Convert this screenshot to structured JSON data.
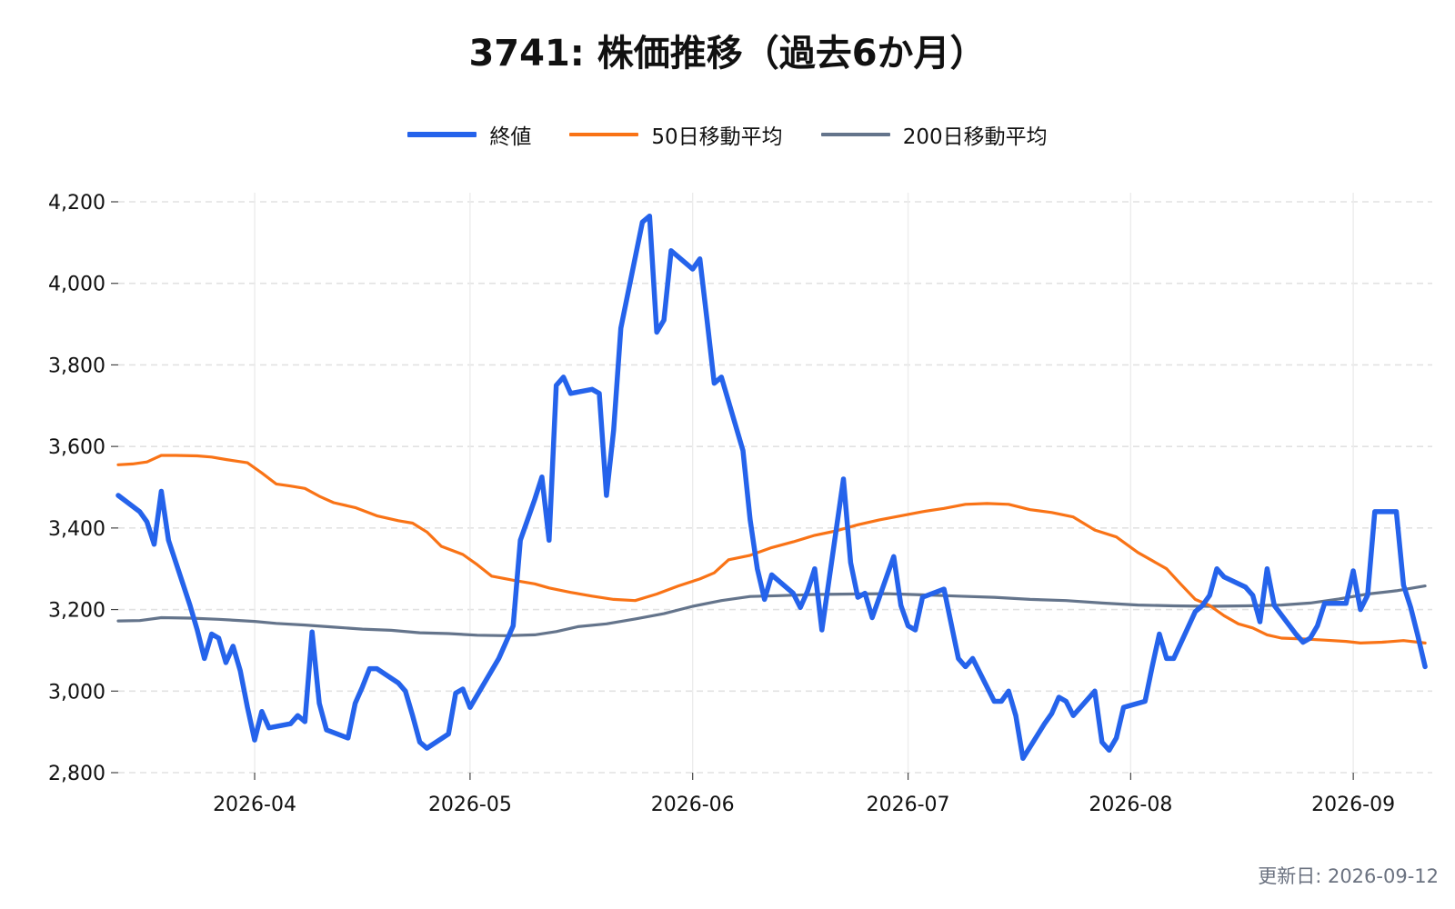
{
  "chart_data": {
    "type": "line",
    "title": "3741: 株価推移（過去6か月）",
    "xlabel": "",
    "ylabel": "",
    "ylim": [
      2800,
      4200
    ],
    "xlim": [
      "2026-03-13",
      "2026-09-12"
    ],
    "yticks": [
      2800,
      3000,
      3200,
      3400,
      3600,
      3800,
      4000,
      4200
    ],
    "ytick_labels": [
      "2,800",
      "3,000",
      "3,200",
      "3,400",
      "3,600",
      "3,800",
      "4,000",
      "4,200"
    ],
    "xticks": [
      "2026-04-01",
      "2026-05-01",
      "2026-06-01",
      "2026-07-01",
      "2026-08-01",
      "2026-09-01"
    ],
    "xtick_labels": [
      "2026-04",
      "2026-05",
      "2026-06",
      "2026-07",
      "2026-08",
      "2026-09"
    ],
    "grid": true,
    "legend_position": "top-center",
    "series": [
      {
        "name": "終値",
        "color": "#2563eb",
        "points": [
          [
            "2026-03-13",
            3480
          ],
          [
            "2026-03-16",
            3440
          ],
          [
            "2026-03-17",
            3415
          ],
          [
            "2026-03-18",
            3360
          ],
          [
            "2026-03-19",
            3490
          ],
          [
            "2026-03-20",
            3370
          ],
          [
            "2026-03-23",
            3210
          ],
          [
            "2026-03-24",
            3150
          ],
          [
            "2026-03-25",
            3080
          ],
          [
            "2026-03-26",
            3140
          ],
          [
            "2026-03-27",
            3130
          ],
          [
            "2026-03-28",
            3070
          ],
          [
            "2026-03-29",
            3110
          ],
          [
            "2026-03-30",
            3050
          ],
          [
            "2026-03-31",
            2960
          ],
          [
            "2026-04-01",
            2880
          ],
          [
            "2026-04-02",
            2950
          ],
          [
            "2026-04-03",
            2910
          ],
          [
            "2026-04-06",
            2920
          ],
          [
            "2026-04-07",
            2940
          ],
          [
            "2026-04-08",
            2925
          ],
          [
            "2026-04-09",
            3145
          ],
          [
            "2026-04-10",
            2970
          ],
          [
            "2026-04-11",
            2905
          ],
          [
            "2026-04-14",
            2885
          ],
          [
            "2026-04-15",
            2970
          ],
          [
            "2026-04-16",
            3010
          ],
          [
            "2026-04-17",
            3055
          ],
          [
            "2026-04-18",
            3055
          ],
          [
            "2026-04-21",
            3020
          ],
          [
            "2026-04-22",
            3000
          ],
          [
            "2026-04-23",
            2940
          ],
          [
            "2026-04-24",
            2875
          ],
          [
            "2026-04-25",
            2860
          ],
          [
            "2026-04-28",
            2895
          ],
          [
            "2026-04-29",
            2995
          ],
          [
            "2026-04-30",
            3005
          ],
          [
            "2026-05-01",
            2960
          ],
          [
            "2026-05-05",
            3080
          ],
          [
            "2026-05-06",
            3120
          ],
          [
            "2026-05-07",
            3160
          ],
          [
            "2026-05-08",
            3370
          ],
          [
            "2026-05-09",
            3420
          ],
          [
            "2026-05-10",
            3470
          ],
          [
            "2026-05-11",
            3525
          ],
          [
            "2026-05-12",
            3370
          ],
          [
            "2026-05-13",
            3750
          ],
          [
            "2026-05-14",
            3770
          ],
          [
            "2026-05-15",
            3730
          ],
          [
            "2026-05-18",
            3740
          ],
          [
            "2026-05-19",
            3730
          ],
          [
            "2026-05-20",
            3480
          ],
          [
            "2026-05-21",
            3640
          ],
          [
            "2026-05-22",
            3890
          ],
          [
            "2026-05-25",
            4150
          ],
          [
            "2026-05-26",
            4165
          ],
          [
            "2026-05-27",
            3880
          ],
          [
            "2026-05-28",
            3910
          ],
          [
            "2026-05-29",
            4080
          ],
          [
            "2026-06-01",
            4035
          ],
          [
            "2026-06-02",
            4060
          ],
          [
            "2026-06-03",
            3910
          ],
          [
            "2026-06-04",
            3755
          ],
          [
            "2026-06-05",
            3770
          ],
          [
            "2026-06-08",
            3590
          ],
          [
            "2026-06-09",
            3420
          ],
          [
            "2026-06-10",
            3300
          ],
          [
            "2026-06-11",
            3225
          ],
          [
            "2026-06-12",
            3285
          ],
          [
            "2026-06-15",
            3240
          ],
          [
            "2026-06-16",
            3205
          ],
          [
            "2026-06-17",
            3245
          ],
          [
            "2026-06-18",
            3300
          ],
          [
            "2026-06-19",
            3150
          ],
          [
            "2026-06-22",
            3520
          ],
          [
            "2026-06-23",
            3315
          ],
          [
            "2026-06-24",
            3230
          ],
          [
            "2026-06-25",
            3240
          ],
          [
            "2026-06-26",
            3180
          ],
          [
            "2026-06-29",
            3330
          ],
          [
            "2026-06-30",
            3210
          ],
          [
            "2026-07-01",
            3160
          ],
          [
            "2026-07-02",
            3150
          ],
          [
            "2026-07-03",
            3230
          ],
          [
            "2026-07-06",
            3250
          ],
          [
            "2026-07-07",
            3165
          ],
          [
            "2026-07-08",
            3080
          ],
          [
            "2026-07-09",
            3060
          ],
          [
            "2026-07-10",
            3080
          ],
          [
            "2026-07-13",
            2975
          ],
          [
            "2026-07-14",
            2975
          ],
          [
            "2026-07-15",
            3000
          ],
          [
            "2026-07-16",
            2940
          ],
          [
            "2026-07-17",
            2835
          ],
          [
            "2026-07-20",
            2920
          ],
          [
            "2026-07-21",
            2945
          ],
          [
            "2026-07-22",
            2985
          ],
          [
            "2026-07-23",
            2975
          ],
          [
            "2026-07-24",
            2940
          ],
          [
            "2026-07-27",
            3000
          ],
          [
            "2026-07-28",
            2875
          ],
          [
            "2026-07-29",
            2855
          ],
          [
            "2026-07-30",
            2885
          ],
          [
            "2026-07-31",
            2960
          ],
          [
            "2026-08-03",
            2975
          ],
          [
            "2026-08-04",
            3060
          ],
          [
            "2026-08-05",
            3140
          ],
          [
            "2026-08-06",
            3080
          ],
          [
            "2026-08-07",
            3080
          ],
          [
            "2026-08-10",
            3195
          ],
          [
            "2026-08-11",
            3210
          ],
          [
            "2026-08-12",
            3235
          ],
          [
            "2026-08-13",
            3300
          ],
          [
            "2026-08-14",
            3280
          ],
          [
            "2026-08-17",
            3255
          ],
          [
            "2026-08-18",
            3235
          ],
          [
            "2026-08-19",
            3170
          ],
          [
            "2026-08-20",
            3300
          ],
          [
            "2026-08-21",
            3210
          ],
          [
            "2026-08-24",
            3140
          ],
          [
            "2026-08-25",
            3120
          ],
          [
            "2026-08-26",
            3130
          ],
          [
            "2026-08-27",
            3160
          ],
          [
            "2026-08-28",
            3215
          ],
          [
            "2026-08-31",
            3215
          ],
          [
            "2026-09-01",
            3295
          ],
          [
            "2026-09-02",
            3200
          ],
          [
            "2026-09-03",
            3235
          ],
          [
            "2026-09-04",
            3440
          ],
          [
            "2026-09-07",
            3440
          ],
          [
            "2026-09-08",
            3260
          ],
          [
            "2026-09-09",
            3205
          ],
          [
            "2026-09-10",
            3135
          ],
          [
            "2026-09-11",
            3060
          ]
        ]
      },
      {
        "name": "50日移動平均",
        "color": "#f97316",
        "points": [
          [
            "2026-03-13",
            3555
          ],
          [
            "2026-03-15",
            3557
          ],
          [
            "2026-03-17",
            3562
          ],
          [
            "2026-03-18",
            3570
          ],
          [
            "2026-03-19",
            3578
          ],
          [
            "2026-03-21",
            3578
          ],
          [
            "2026-03-24",
            3577
          ],
          [
            "2026-03-26",
            3574
          ],
          [
            "2026-03-28",
            3568
          ],
          [
            "2026-03-31",
            3560
          ],
          [
            "2026-04-02",
            3535
          ],
          [
            "2026-04-04",
            3508
          ],
          [
            "2026-04-06",
            3503
          ],
          [
            "2026-04-08",
            3497
          ],
          [
            "2026-04-10",
            3478
          ],
          [
            "2026-04-12",
            3462
          ],
          [
            "2026-04-15",
            3450
          ],
          [
            "2026-04-18",
            3430
          ],
          [
            "2026-04-21",
            3418
          ],
          [
            "2026-04-23",
            3412
          ],
          [
            "2026-04-25",
            3390
          ],
          [
            "2026-04-27",
            3355
          ],
          [
            "2026-04-30",
            3335
          ],
          [
            "2026-05-02",
            3310
          ],
          [
            "2026-05-04",
            3282
          ],
          [
            "2026-05-07",
            3272
          ],
          [
            "2026-05-10",
            3263
          ],
          [
            "2026-05-12",
            3253
          ],
          [
            "2026-05-15",
            3242
          ],
          [
            "2026-05-18",
            3233
          ],
          [
            "2026-05-21",
            3225
          ],
          [
            "2026-05-24",
            3222
          ],
          [
            "2026-05-27",
            3238
          ],
          [
            "2026-05-30",
            3258
          ],
          [
            "2026-06-02",
            3275
          ],
          [
            "2026-06-04",
            3290
          ],
          [
            "2026-06-06",
            3322
          ],
          [
            "2026-06-09",
            3333
          ],
          [
            "2026-06-12",
            3352
          ],
          [
            "2026-06-15",
            3366
          ],
          [
            "2026-06-18",
            3382
          ],
          [
            "2026-06-21",
            3393
          ],
          [
            "2026-06-24",
            3408
          ],
          [
            "2026-06-27",
            3420
          ],
          [
            "2026-06-30",
            3430
          ],
          [
            "2026-07-03",
            3440
          ],
          [
            "2026-07-06",
            3448
          ],
          [
            "2026-07-09",
            3458
          ],
          [
            "2026-07-12",
            3460
          ],
          [
            "2026-07-15",
            3458
          ],
          [
            "2026-07-18",
            3445
          ],
          [
            "2026-07-21",
            3438
          ],
          [
            "2026-07-24",
            3427
          ],
          [
            "2026-07-27",
            3395
          ],
          [
            "2026-07-30",
            3378
          ],
          [
            "2026-08-02",
            3340
          ],
          [
            "2026-08-04",
            3320
          ],
          [
            "2026-08-06",
            3300
          ],
          [
            "2026-08-08",
            3262
          ],
          [
            "2026-08-10",
            3225
          ],
          [
            "2026-08-12",
            3210
          ],
          [
            "2026-08-14",
            3185
          ],
          [
            "2026-08-16",
            3165
          ],
          [
            "2026-08-18",
            3155
          ],
          [
            "2026-08-20",
            3138
          ],
          [
            "2026-08-22",
            3130
          ],
          [
            "2026-08-25",
            3128
          ],
          [
            "2026-08-28",
            3125
          ],
          [
            "2026-08-31",
            3122
          ],
          [
            "2026-09-02",
            3118
          ],
          [
            "2026-09-05",
            3120
          ],
          [
            "2026-09-08",
            3124
          ],
          [
            "2026-09-11",
            3118
          ]
        ]
      },
      {
        "name": "200日移動平均",
        "color": "#64748b",
        "points": [
          [
            "2026-03-13",
            3172
          ],
          [
            "2026-03-16",
            3173
          ],
          [
            "2026-03-19",
            3180
          ],
          [
            "2026-03-23",
            3179
          ],
          [
            "2026-03-27",
            3176
          ],
          [
            "2026-04-01",
            3171
          ],
          [
            "2026-04-04",
            3166
          ],
          [
            "2026-04-08",
            3162
          ],
          [
            "2026-04-12",
            3157
          ],
          [
            "2026-04-16",
            3152
          ],
          [
            "2026-04-20",
            3149
          ],
          [
            "2026-04-24",
            3143
          ],
          [
            "2026-04-28",
            3141
          ],
          [
            "2026-05-02",
            3137
          ],
          [
            "2026-05-06",
            3136
          ],
          [
            "2026-05-10",
            3138
          ],
          [
            "2026-05-13",
            3146
          ],
          [
            "2026-05-16",
            3158
          ],
          [
            "2026-05-20",
            3165
          ],
          [
            "2026-05-24",
            3177
          ],
          [
            "2026-05-28",
            3190
          ],
          [
            "2026-06-01",
            3208
          ],
          [
            "2026-06-05",
            3222
          ],
          [
            "2026-06-09",
            3232
          ],
          [
            "2026-06-13",
            3234
          ],
          [
            "2026-06-18",
            3237
          ],
          [
            "2026-06-23",
            3238
          ],
          [
            "2026-06-28",
            3239
          ],
          [
            "2026-07-03",
            3236
          ],
          [
            "2026-07-08",
            3233
          ],
          [
            "2026-07-13",
            3230
          ],
          [
            "2026-07-18",
            3225
          ],
          [
            "2026-07-23",
            3222
          ],
          [
            "2026-07-28",
            3216
          ],
          [
            "2026-08-02",
            3211
          ],
          [
            "2026-08-07",
            3209
          ],
          [
            "2026-08-12",
            3208
          ],
          [
            "2026-08-17",
            3209
          ],
          [
            "2026-08-22",
            3211
          ],
          [
            "2026-08-26",
            3216
          ],
          [
            "2026-08-30",
            3226
          ],
          [
            "2026-09-03",
            3238
          ],
          [
            "2026-09-07",
            3246
          ],
          [
            "2026-09-11",
            3258
          ]
        ]
      }
    ]
  },
  "footer": {
    "updated": "更新日: 2026-09-12"
  }
}
